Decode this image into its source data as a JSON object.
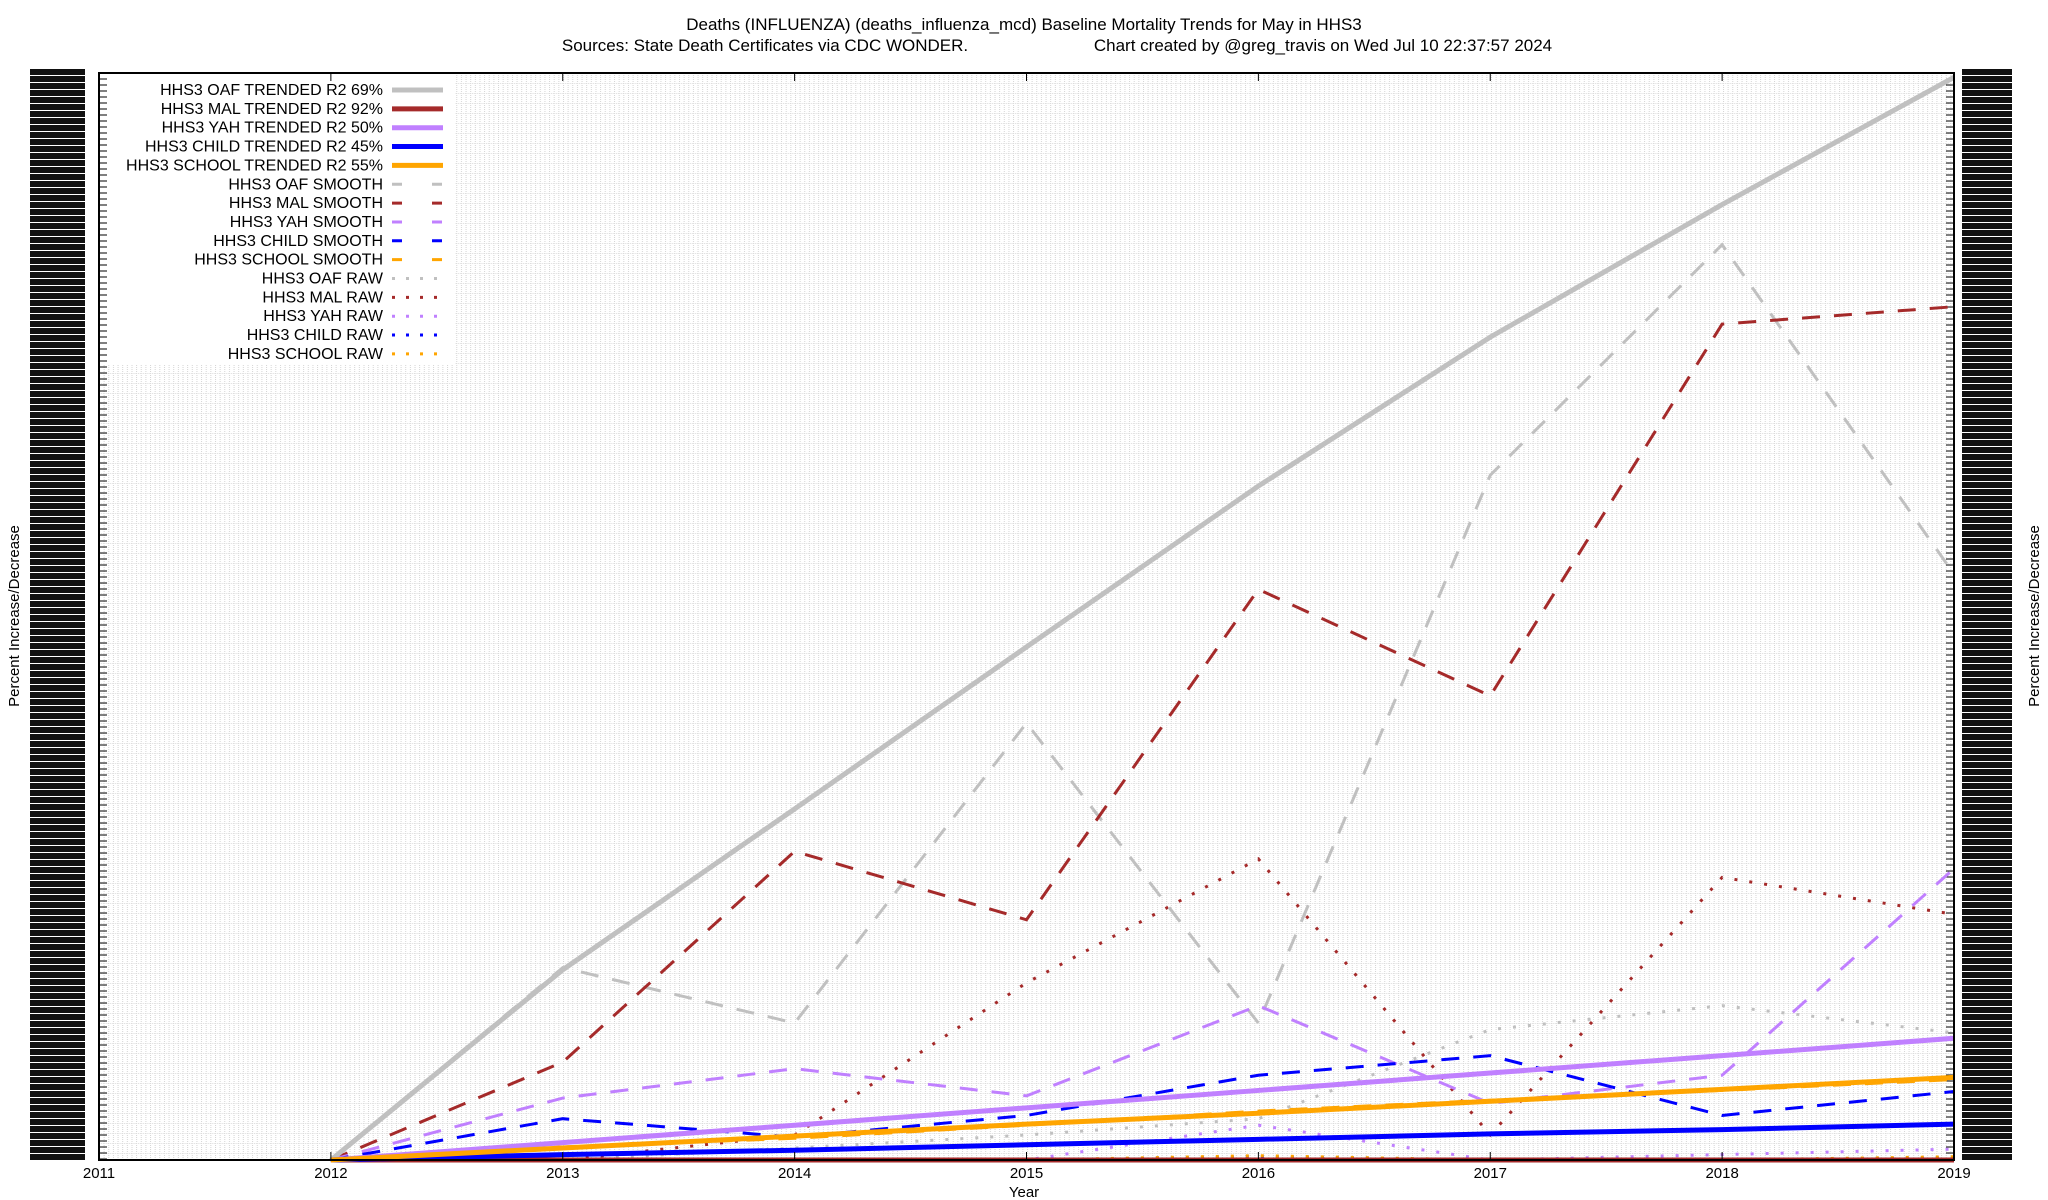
{
  "chart_data": {
    "type": "line",
    "title": "Deaths (INFLUENZA) (deaths_influenza_mcd)  Baseline Mortality Trends for May in HHS3",
    "subtitle_left": "Sources: State Death Certificates via CDC WONDER.",
    "subtitle_right": "Chart created by @greg_travis on Wed Jul 10 22:37:57 2024",
    "xlabel": "Year",
    "ylabel": "Percent Increase/Decrease",
    "y2label": "Percent Increase/Decrease",
    "xlim": [
      2011,
      2019
    ],
    "ylim": [
      0,
      100
    ],
    "xticks": [
      "2011",
      "2012",
      "2013",
      "2014",
      "2015",
      "2016",
      "2017",
      "2018",
      "2019"
    ],
    "yticks_note": "tick labels overlap and are illegible",
    "grid": true,
    "legend_position": "top-left",
    "x": [
      2012,
      2013,
      2014,
      2015,
      2016,
      2017,
      2018,
      2019
    ],
    "series": [
      {
        "name": "HHS3 OAF TRENDED R2  69%",
        "style": "trend",
        "color": "#c0c0c0",
        "values": [
          0,
          17.5,
          32.3,
          47.2,
          62,
          75.7,
          87.9,
          99.6
        ]
      },
      {
        "name": "HHS3 MAL TRENDED R2  92%",
        "style": "trend",
        "color": "#a52a2a",
        "values": [
          0,
          0,
          0,
          0,
          0,
          0,
          0,
          0
        ]
      },
      {
        "name": "HHS3 YAH TRENDED R2  50%",
        "style": "trend",
        "color": "#c080ff",
        "values": [
          0,
          1.6,
          3.2,
          4.8,
          6.4,
          8.0,
          9.6,
          11.2
        ]
      },
      {
        "name": "HHS3 CHILD TRENDED R2  45%",
        "style": "trend",
        "color": "#0000ff",
        "values": [
          0,
          0.5,
          0.9,
          1.4,
          1.9,
          2.4,
          2.8,
          3.3
        ]
      },
      {
        "name": "HHS3 SCHOOL TRENDED R2  55%",
        "style": "trend",
        "color": "#ffa500",
        "values": [
          0,
          1.1,
          2.2,
          3.3,
          4.3,
          5.4,
          6.5,
          7.6
        ]
      },
      {
        "name": "HHS3 OAF SMOOTH",
        "style": "smooth",
        "color": "#c0c0c0",
        "values": [
          0,
          17.7,
          12.6,
          40.2,
          12.6,
          63,
          84.2,
          53.9
        ]
      },
      {
        "name": "HHS3 MAL SMOOTH",
        "style": "smooth",
        "color": "#a52a2a",
        "values": [
          0,
          9,
          28.4,
          22.1,
          52.5,
          42.7,
          76.9,
          78.5
        ]
      },
      {
        "name": "HHS3 YAH SMOOTH",
        "style": "smooth",
        "color": "#c080ff",
        "values": [
          0,
          5.7,
          8.4,
          5.9,
          14.2,
          5.2,
          7.8,
          26.8
        ]
      },
      {
        "name": "HHS3 CHILD SMOOTH",
        "style": "smooth",
        "color": "#0000ff",
        "values": [
          0,
          3.8,
          2.1,
          4.1,
          7.8,
          9.6,
          4.1,
          6.3
        ]
      },
      {
        "name": "HHS3 SCHOOL SMOOTH",
        "style": "smooth",
        "color": "#ffa500",
        "values": [
          0,
          1.2,
          2.0,
          3.2,
          4.5,
          5.5,
          6.4,
          7.4
        ]
      },
      {
        "name": "HHS3 OAF RAW",
        "style": "raw",
        "color": "#c0c0c0",
        "values": [
          0,
          0,
          1.1,
          2.3,
          3.8,
          12,
          14.2,
          11.7
        ]
      },
      {
        "name": "HHS3 MAL RAW",
        "style": "raw",
        "color": "#a52a2a",
        "values": [
          0,
          0,
          2.3,
          16.3,
          27.7,
          2.3,
          26,
          22.6
        ]
      },
      {
        "name": "HHS3 YAH RAW",
        "style": "raw",
        "color": "#c080ff",
        "values": [
          0,
          0,
          0,
          0,
          3.2,
          0,
          0.5,
          1.0
        ]
      },
      {
        "name": "HHS3 CHILD RAW",
        "style": "raw",
        "color": "#0000ff",
        "values": [
          0,
          0,
          0,
          0,
          0.3,
          0,
          0,
          0.2
        ]
      },
      {
        "name": "HHS3 SCHOOL RAW",
        "style": "raw",
        "color": "#ffa500",
        "values": [
          0,
          0,
          0,
          0,
          0.4,
          0,
          0,
          0.3
        ]
      }
    ]
  }
}
